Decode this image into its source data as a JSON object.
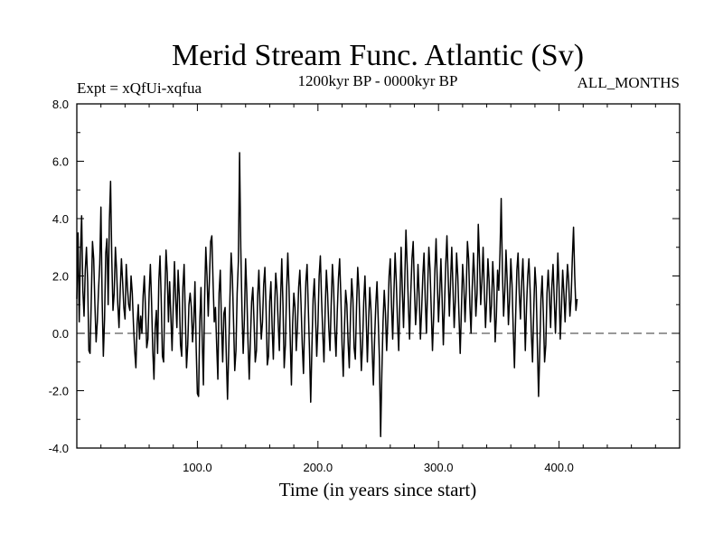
{
  "chart_data": {
    "type": "line",
    "title": "Merid Stream Func. Atlantic (Sv)",
    "subtitle_left": "Expt = xQfUi-xqfua",
    "subtitle_center": "1200kyr BP - 0000kyr BP",
    "subtitle_right": "ALL_MONTHS",
    "xlabel": "Time (in years since start)",
    "ylabel": "",
    "xlim": [
      0,
      500
    ],
    "ylim": [
      -4,
      8
    ],
    "x_ticks": [
      100,
      200,
      300,
      400
    ],
    "x_tick_labels": [
      "100.0",
      "200.0",
      "300.0",
      "400.0"
    ],
    "y_ticks": [
      -4,
      -2,
      0,
      2,
      4,
      6,
      8
    ],
    "y_tick_labels": [
      "-4.0",
      "-2.0",
      "0.0",
      "2.0",
      "4.0",
      "6.0",
      "8.0"
    ],
    "reference_line": {
      "y": 0,
      "style": "dashed"
    },
    "series": [
      {
        "name": "Merid Stream Func. Atlantic",
        "x_start": 0,
        "x_step": 1,
        "values": [
          1.2,
          3.5,
          0.4,
          2.8,
          4.1,
          1.5,
          0.6,
          2.2,
          3.0,
          1.8,
          -0.6,
          -0.7,
          1.2,
          3.2,
          2.6,
          1.0,
          -0.3,
          0.4,
          1.5,
          2.4,
          4.4,
          1.2,
          -0.8,
          0.5,
          2.8,
          3.3,
          1.0,
          3.9,
          5.3,
          2.6,
          0.8,
          1.4,
          3.0,
          2.2,
          1.0,
          0.2,
          1.5,
          2.6,
          1.8,
          0.9,
          0.5,
          2.4,
          1.6,
          1.0,
          0.8,
          2.0,
          1.4,
          0.3,
          -0.6,
          -1.2,
          0.3,
          1.0,
          -0.2,
          0.6,
          0.0,
          1.3,
          2.0,
          0.8,
          -0.5,
          -0.2,
          1.4,
          2.4,
          1.1,
          -0.6,
          -1.6,
          0.2,
          0.8,
          -0.7,
          1.8,
          2.7,
          1.2,
          -0.8,
          -1.0,
          1.3,
          2.9,
          2.1,
          0.4,
          1.8,
          0.6,
          -0.6,
          1.0,
          2.5,
          1.2,
          0.2,
          2.2,
          1.3,
          -0.4,
          -0.8,
          1.6,
          2.4,
          0.6,
          -1.2,
          -0.4,
          1.0,
          1.4,
          0.9,
          -0.3,
          0.4,
          1.8,
          -0.5,
          -2.1,
          -2.2,
          0.4,
          1.6,
          -0.2,
          -1.8,
          1.2,
          3.0,
          2.0,
          0.6,
          1.9,
          3.2,
          3.4,
          1.8,
          0.4,
          0.9,
          -0.4,
          -1.6,
          1.4,
          2.2,
          0.3,
          -1.0,
          0.7,
          0.9,
          -0.8,
          -2.3,
          -0.6,
          1.2,
          2.8,
          2.0,
          0.4,
          -1.3,
          -0.6,
          1.4,
          2.5,
          6.3,
          3.0,
          0.8,
          -0.7,
          0.5,
          2.6,
          1.4,
          -0.3,
          -1.6,
          -0.2,
          1.1,
          1.6,
          0.4,
          -1.0,
          -0.6,
          1.3,
          2.2,
          0.9,
          -0.2,
          0.4,
          1.7,
          2.3,
          0.8,
          -1.1,
          -0.8,
          1.1,
          1.8,
          0.2,
          -0.9,
          0.8,
          2.1,
          1.5,
          0.4,
          -0.6,
          1.2,
          2.6,
          1.0,
          -1.2,
          -0.4,
          1.5,
          2.8,
          1.6,
          -0.2,
          -1.8,
          0.3,
          1.4,
          0.9,
          -0.6,
          0.2,
          1.6,
          2.2,
          1.0,
          -0.4,
          -1.4,
          0.4,
          1.8,
          2.4,
          0.9,
          -0.6,
          -2.4,
          -0.5,
          1.2,
          1.9,
          0.6,
          -0.8,
          0.3,
          2.0,
          2.7,
          1.2,
          0.0,
          -1.0,
          0.8,
          2.2,
          1.4,
          0.2,
          -0.6,
          1.0,
          2.4,
          1.6,
          0.1,
          -0.8,
          0.7,
          1.9,
          2.6,
          1.3,
          -0.4,
          -1.5,
          0.2,
          1.5,
          1.0,
          -0.3,
          -1.2,
          0.6,
          1.9,
          1.2,
          -0.5,
          -0.9,
          0.9,
          2.3,
          1.5,
          0.0,
          -1.3,
          -0.4,
          1.1,
          2.0,
          0.6,
          -1.0,
          0.4,
          1.6,
          0.8,
          -0.6,
          -1.8,
          -0.2,
          1.0,
          1.8,
          0.5,
          -0.9,
          -3.6,
          -1.4,
          0.4,
          1.5,
          0.7,
          -0.6,
          0.5,
          2.0,
          2.6,
          1.0,
          -0.2,
          1.4,
          2.8,
          1.8,
          0.4,
          -0.6,
          1.2,
          3.0,
          1.5,
          0.2,
          1.8,
          3.6,
          2.4,
          1.0,
          -0.2,
          1.4,
          2.6,
          3.2,
          1.6,
          0.3,
          1.0,
          2.4,
          1.3,
          -0.2,
          0.8,
          2.0,
          2.8,
          1.2,
          0.0,
          1.6,
          3.0,
          2.2,
          0.8,
          -0.6,
          0.6,
          2.2,
          3.3,
          1.8,
          0.4,
          1.4,
          2.6,
          1.2,
          -0.4,
          1.0,
          2.4,
          3.4,
          2.0,
          0.6,
          1.8,
          3.0,
          1.6,
          0.2,
          1.2,
          2.8,
          2.0,
          0.6,
          -0.7,
          0.8,
          2.4,
          1.7,
          0.4,
          1.5,
          3.2,
          2.6,
          1.0,
          0.0,
          1.6,
          2.8,
          1.9,
          0.6,
          1.4,
          3.8,
          2.6,
          1.0,
          1.8,
          3.0,
          1.5,
          0.2,
          1.2,
          2.6,
          1.8,
          0.4,
          1.0,
          2.5,
          1.6,
          -0.3,
          0.6,
          2.2,
          1.5,
          2.8,
          4.7,
          2.2,
          0.6,
          1.5,
          2.9,
          1.8,
          0.3,
          1.2,
          2.6,
          1.7,
          0.1,
          -1.2,
          0.6,
          2.2,
          2.8,
          1.4,
          0.5,
          1.8,
          2.6,
          1.2,
          -0.6,
          0.9,
          2.0,
          2.6,
          1.5,
          0.0,
          -1.0,
          0.8,
          2.3,
          1.6,
          -0.4,
          -2.2,
          -0.6,
          1.2,
          2.0,
          0.6,
          -1.0,
          -0.4,
          1.4,
          2.2,
          1.3,
          0.2,
          1.6,
          2.4,
          1.2,
          0.0,
          1.3,
          2.8,
          1.6,
          -0.2,
          0.9,
          2.2,
          1.4,
          0.4,
          1.5,
          2.4,
          1.8,
          0.6,
          1.2,
          2.6,
          3.7,
          2.0,
          0.8,
          1.2
        ]
      }
    ]
  }
}
